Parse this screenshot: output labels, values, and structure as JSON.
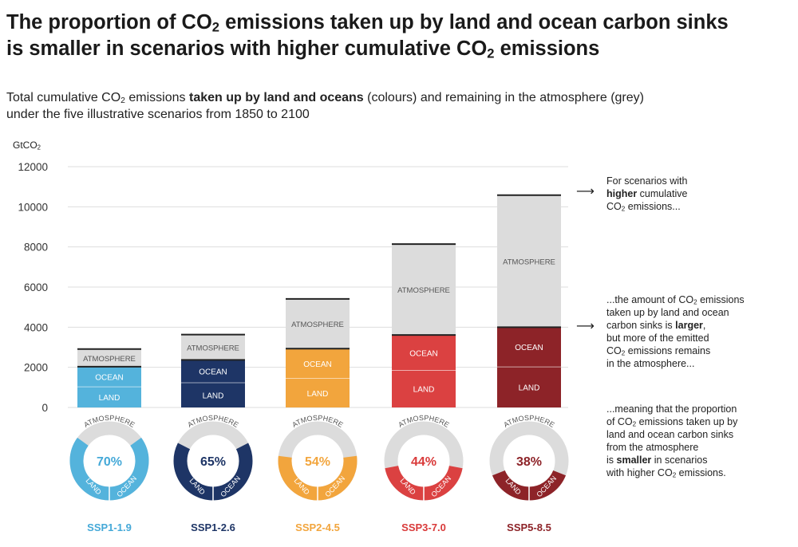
{
  "title": {
    "line1_pre": "The proportion of CO",
    "line1_sub": "2",
    "line1_post": " emissions taken up by land and ocean carbon sinks",
    "line2_pre": "is smaller in scenarios with higher cumulative CO",
    "line2_sub": "2",
    "line2_post": " emissions"
  },
  "subtitle": {
    "p1": "Total cumulative CO",
    "p1_sub": "2",
    "p2": " emissions ",
    "bold": "taken up by land and oceans",
    "p3": " (colours) and remaining in the atmosphere (grey)",
    "line2": "under the five illustrative scenarios from 1850 to 2100"
  },
  "unit": {
    "pre": "GtCO",
    "sub": "2"
  },
  "annotations": {
    "a1": {
      "l1": "For scenarios with",
      "l2_bold": "higher",
      "l2": " cumulative",
      "l3_pre": "CO",
      "l3_sub": "2",
      "l3_post": " emissions..."
    },
    "a2": {
      "l1_pre": "...the amount of CO",
      "l1_sub": "2",
      "l1_post": " emissions",
      "l2": "taken up by land and ocean",
      "l3_pre": "carbon sinks is ",
      "l3_bold": "larger",
      "l3_post": ",",
      "l4": "but more of the emitted",
      "l5_pre": "CO",
      "l5_sub": "2",
      "l5_post": " emissions remains",
      "l6": "in the atmosphere..."
    },
    "a3": {
      "l1": "...meaning that the proportion",
      "l2_pre": "of CO",
      "l2_sub": "2",
      "l2_post": " emissions taken up by",
      "l3": "land and ocean carbon sinks",
      "l4": "from the atmosphere",
      "l5_pre": "is ",
      "l5_bold": "smaller",
      "l5_post": " in scenarios",
      "l6_pre": "with higher CO",
      "l6_sub": "2",
      "l6_post": " emissions."
    },
    "arrow": "⟶"
  },
  "chart_data": {
    "type": "bar",
    "stacked": true,
    "unit": "GtCO2",
    "ylim": [
      0,
      12000
    ],
    "yticks": [
      "0",
      "2000",
      "4000",
      "6000",
      "8000",
      "10000",
      "12000"
    ],
    "grid": true,
    "categories": [
      "SSP1-1.9",
      "SSP1-2.6",
      "SSP2-4.5",
      "SSP3-7.0",
      "SSP5-8.5"
    ],
    "colors": {
      "land": [
        "#54b3dc",
        "#1e3566",
        "#f2a53d",
        "#db4141",
        "#8d2328"
      ],
      "ocean": [
        "#54b3dc",
        "#1e3566",
        "#f2a53d",
        "#db4141",
        "#8d2328"
      ],
      "atmosphere": "#dcdcdc",
      "label": [
        "#45a9d8",
        "#1e3566",
        "#f2a53d",
        "#d93a3a",
        "#8d2328"
      ]
    },
    "series": [
      {
        "name": "LAND",
        "values": [
          1030,
          1230,
          1450,
          1850,
          2020
        ]
      },
      {
        "name": "OCEAN",
        "values": [
          1000,
          1140,
          1480,
          1760,
          1980
        ]
      },
      {
        "name": "ATMOSPHERE",
        "values": [
          880,
          1260,
          2480,
          4530,
          6580
        ]
      }
    ],
    "totals": [
      2910,
      3630,
      5410,
      8140,
      10580
    ],
    "donuts": {
      "percent": [
        "70%",
        "65%",
        "54%",
        "44%",
        "38%"
      ],
      "values": [
        0.7,
        0.65,
        0.54,
        0.44,
        0.38
      ],
      "atmosphere_label": "ATMOSPHERE",
      "land_label": "LAND",
      "ocean_label": "OCEAN"
    }
  }
}
